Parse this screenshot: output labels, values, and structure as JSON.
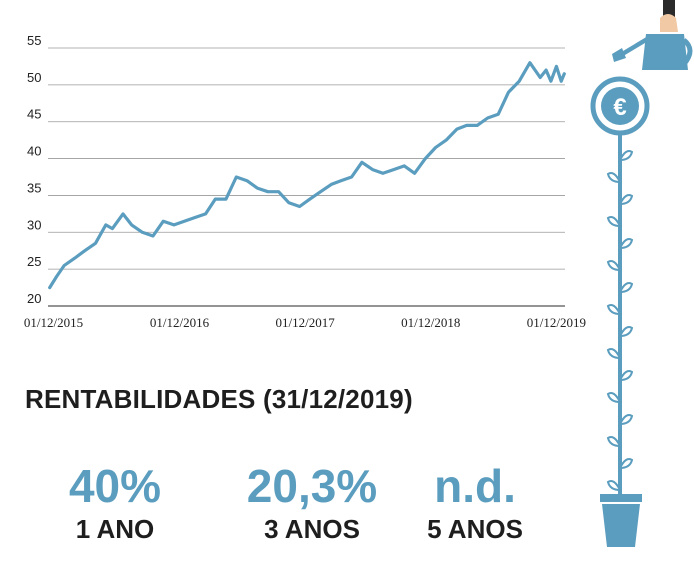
{
  "chart_data": {
    "type": "line",
    "title": "",
    "xlabel": "",
    "ylabel": "",
    "ylim": [
      20,
      55
    ],
    "yticks": [
      20,
      25,
      30,
      35,
      40,
      45,
      50,
      55
    ],
    "xlim": [
      "2015-11-15",
      "2019-12-26"
    ],
    "xtick_labels": [
      {
        "label": "01/12/2015",
        "date": "2015-12-01"
      },
      {
        "label": "01/12/2016",
        "date": "2016-12-01"
      },
      {
        "label": "01/12/2017",
        "date": "2017-12-01"
      },
      {
        "label": "01/12/2018",
        "date": "2018-12-01"
      },
      {
        "label": "01/12/2019",
        "date": "2019-12-01"
      }
    ],
    "grid": "horizontal",
    "series_color": "#5b9dbf",
    "series": [
      {
        "x": [
          "2015-11-20",
          "2015-12-10",
          "2016-01-01",
          "2016-02-01",
          "2016-03-01",
          "2016-04-01",
          "2016-05-01",
          "2016-05-20",
          "2016-06-20",
          "2016-07-15",
          "2016-08-15",
          "2016-09-15",
          "2016-10-15",
          "2016-11-15",
          "2016-12-15",
          "2017-01-15",
          "2017-02-15",
          "2017-03-15",
          "2017-04-15",
          "2017-05-15",
          "2017-06-15",
          "2017-07-15",
          "2017-08-15",
          "2017-09-15",
          "2017-10-15",
          "2017-11-15",
          "2017-12-15",
          "2018-01-15",
          "2018-02-15",
          "2018-03-15",
          "2018-04-15",
          "2018-05-15",
          "2018-06-15",
          "2018-07-15",
          "2018-08-15",
          "2018-09-15",
          "2018-10-15",
          "2018-11-15",
          "2018-12-15",
          "2019-01-15",
          "2019-02-15",
          "2019-03-15",
          "2019-04-15",
          "2019-05-15",
          "2019-06-15",
          "2019-07-15",
          "2019-08-15",
          "2019-09-15",
          "2019-10-15",
          "2019-11-01",
          "2019-11-15",
          "2019-12-01",
          "2019-12-15",
          "2019-12-24"
        ],
        "values": [
          22.5,
          24.0,
          25.5,
          26.5,
          27.5,
          28.5,
          31.0,
          30.5,
          32.5,
          31.0,
          30.0,
          29.5,
          31.5,
          31.0,
          31.5,
          32.0,
          32.5,
          34.5,
          34.5,
          37.5,
          37.0,
          36.0,
          35.5,
          35.5,
          34.0,
          33.5,
          34.5,
          35.5,
          36.5,
          37.0,
          37.5,
          39.5,
          38.5,
          38.0,
          38.5,
          39.0,
          38.0,
          40.0,
          41.5,
          42.5,
          44.0,
          44.5,
          44.5,
          45.5,
          46.0,
          49.0,
          50.5,
          53.0,
          51.0,
          52.0,
          50.5,
          52.5,
          50.5,
          51.5
        ]
      }
    ]
  },
  "stats": {
    "title": "RENTABILIDADES (31/12/2019)",
    "items": [
      {
        "value": "40%",
        "label": "1 ANO"
      },
      {
        "value": "20,3%",
        "label": "3 ANOS"
      },
      {
        "value": "n.d.",
        "label": "5 ANOS"
      }
    ]
  },
  "illustration": {
    "coin_symbol": "€",
    "accent_color": "#5b9dbf",
    "icons": [
      "watering-can-icon",
      "euro-coin-icon",
      "plant-icon",
      "pot-icon"
    ]
  }
}
